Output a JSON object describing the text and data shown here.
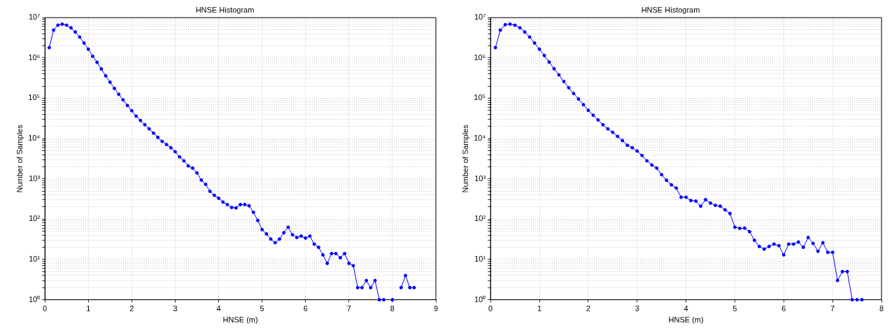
{
  "chart_data": [
    {
      "type": "line",
      "title": "HNSE Histogram",
      "xlabel": "HNSE (m)",
      "ylabel": "Number of Samples",
      "log": "y",
      "grid": true,
      "marker": "circle",
      "line_style": "solid",
      "xlim": [
        0,
        9
      ],
      "xticks": [
        0,
        1,
        2,
        3,
        4,
        5,
        6,
        7,
        8,
        9
      ],
      "ylim": [
        1,
        10000000
      ],
      "yticks": [
        {
          "value": 1,
          "label": "10⁰"
        },
        {
          "value": 2,
          "label": null
        },
        {
          "value": 3,
          "label": null
        },
        {
          "value": 4,
          "label": null
        },
        {
          "value": 5,
          "label": null
        },
        {
          "value": 6,
          "label": null
        },
        {
          "value": 7,
          "label": null
        },
        {
          "value": 8,
          "label": null
        },
        {
          "value": 9,
          "label": null
        },
        {
          "value": 10,
          "label": "10¹"
        },
        {
          "value": 20,
          "label": null
        },
        {
          "value": 30,
          "label": null
        },
        {
          "value": 40,
          "label": null
        },
        {
          "value": 50,
          "label": null
        },
        {
          "value": 60,
          "label": null
        },
        {
          "value": 70,
          "label": null
        },
        {
          "value": 80,
          "label": null
        },
        {
          "value": 90,
          "label": null
        },
        {
          "value": 100,
          "label": "10²"
        },
        {
          "value": 200,
          "label": null
        },
        {
          "value": 300,
          "label": null
        },
        {
          "value": 400,
          "label": null
        },
        {
          "value": 500,
          "label": null
        },
        {
          "value": 600,
          "label": null
        },
        {
          "value": 700,
          "label": null
        },
        {
          "value": 800,
          "label": null
        },
        {
          "value": 900,
          "label": null
        },
        {
          "value": 1000,
          "label": "10³"
        },
        {
          "value": 2000,
          "label": null
        },
        {
          "value": 3000,
          "label": null
        },
        {
          "value": 4000,
          "label": null
        },
        {
          "value": 5000,
          "label": null
        },
        {
          "value": 6000,
          "label": null
        },
        {
          "value": 7000,
          "label": null
        },
        {
          "value": 8000,
          "label": null
        },
        {
          "value": 9000,
          "label": null
        },
        {
          "value": 10000,
          "label": "10⁴"
        },
        {
          "value": 20000,
          "label": null
        },
        {
          "value": 30000,
          "label": null
        },
        {
          "value": 40000,
          "label": null
        },
        {
          "value": 50000,
          "label": null
        },
        {
          "value": 60000,
          "label": null
        },
        {
          "value": 70000,
          "label": null
        },
        {
          "value": 80000,
          "label": null
        },
        {
          "value": 90000,
          "label": null
        },
        {
          "value": 100000,
          "label": "10⁵"
        },
        {
          "value": 200000,
          "label": null
        },
        {
          "value": 300000,
          "label": null
        },
        {
          "value": 400000,
          "label": null
        },
        {
          "value": 500000,
          "label": null
        },
        {
          "value": 600000,
          "label": null
        },
        {
          "value": 700000,
          "label": null
        },
        {
          "value": 800000,
          "label": null
        },
        {
          "value": 900000,
          "label": null
        },
        {
          "value": 1000000,
          "label": "10⁶"
        },
        {
          "value": 2000000,
          "label": null
        },
        {
          "value": 3000000,
          "label": null
        },
        {
          "value": 4000000,
          "label": null
        },
        {
          "value": 5000000,
          "label": null
        },
        {
          "value": 6000000,
          "label": null
        },
        {
          "value": 7000000,
          "label": null
        },
        {
          "value": 8000000,
          "label": null
        },
        {
          "value": 9000000,
          "label": null
        },
        {
          "value": 10000000,
          "label": "10⁷"
        }
      ],
      "series": [
        {
          "color": "#0000ff",
          "x": [
            0.1,
            0.2,
            0.3,
            0.4,
            0.5,
            0.6,
            0.7,
            0.8,
            0.9,
            1.0,
            1.1,
            1.2,
            1.3,
            1.4,
            1.5,
            1.6,
            1.7,
            1.8,
            1.9,
            2.0,
            2.1,
            2.2,
            2.3,
            2.4,
            2.5,
            2.6,
            2.7,
            2.8,
            2.9,
            3.0,
            3.1,
            3.2,
            3.3,
            3.4,
            3.5,
            3.6,
            3.7,
            3.8,
            3.9,
            4.0,
            4.1,
            4.2,
            4.3,
            4.4,
            4.5,
            4.6,
            4.7,
            4.8,
            4.9,
            5.0,
            5.1,
            5.2,
            5.3,
            5.4,
            5.5,
            5.6,
            5.7,
            5.8,
            5.9,
            6.0,
            6.1,
            6.2,
            6.3,
            6.4,
            6.5,
            6.6,
            6.7,
            6.8,
            6.9,
            7.0,
            7.1,
            7.2,
            7.3,
            7.4,
            7.5,
            7.6,
            7.7,
            7.8,
            7.9,
            8.0,
            8.1,
            8.2,
            8.3,
            8.4,
            8.5
          ],
          "values": [
            1800000,
            4900000,
            6500000,
            6900000,
            6500000,
            5600000,
            4400000,
            3300000,
            2350000,
            1650000,
            1100000,
            780000,
            530000,
            360000,
            250000,
            175000,
            125000,
            91000,
            66000,
            49000,
            36000,
            28000,
            22000,
            17400,
            13600,
            10700,
            8500,
            7100,
            5900,
            4700,
            3500,
            2800,
            2100,
            1850,
            1400,
            930,
            730,
            490,
            390,
            330,
            265,
            230,
            195,
            190,
            230,
            230,
            215,
            148,
            93,
            55,
            43,
            32,
            26,
            32,
            46,
            63,
            41,
            35,
            38,
            34,
            38,
            24,
            20,
            13,
            8,
            14,
            14,
            11,
            14,
            8,
            7,
            2,
            2,
            3,
            2,
            3,
            1,
            1,
            null,
            1,
            null,
            2,
            4,
            2,
            2
          ]
        }
      ]
    },
    {
      "type": "line",
      "title": "HNSE Histogram",
      "xlabel": "HNSE (m)",
      "ylabel": "Number of Samples",
      "log": "y",
      "grid": true,
      "marker": "circle",
      "line_style": "solid",
      "xlim": [
        0,
        8
      ],
      "xticks": [
        0,
        1,
        2,
        3,
        4,
        5,
        6,
        7,
        8
      ],
      "ylim": [
        1,
        10000000
      ],
      "yticks": [
        {
          "value": 1,
          "label": "10⁰"
        },
        {
          "value": 2,
          "label": null
        },
        {
          "value": 3,
          "label": null
        },
        {
          "value": 4,
          "label": null
        },
        {
          "value": 5,
          "label": null
        },
        {
          "value": 6,
          "label": null
        },
        {
          "value": 7,
          "label": null
        },
        {
          "value": 8,
          "label": null
        },
        {
          "value": 9,
          "label": null
        },
        {
          "value": 10,
          "label": "10¹"
        },
        {
          "value": 20,
          "label": null
        },
        {
          "value": 30,
          "label": null
        },
        {
          "value": 40,
          "label": null
        },
        {
          "value": 50,
          "label": null
        },
        {
          "value": 60,
          "label": null
        },
        {
          "value": 70,
          "label": null
        },
        {
          "value": 80,
          "label": null
        },
        {
          "value": 90,
          "label": null
        },
        {
          "value": 100,
          "label": "10²"
        },
        {
          "value": 200,
          "label": null
        },
        {
          "value": 300,
          "label": null
        },
        {
          "value": 400,
          "label": null
        },
        {
          "value": 500,
          "label": null
        },
        {
          "value": 600,
          "label": null
        },
        {
          "value": 700,
          "label": null
        },
        {
          "value": 800,
          "label": null
        },
        {
          "value": 900,
          "label": null
        },
        {
          "value": 1000,
          "label": "10³"
        },
        {
          "value": 2000,
          "label": null
        },
        {
          "value": 3000,
          "label": null
        },
        {
          "value": 4000,
          "label": null
        },
        {
          "value": 5000,
          "label": null
        },
        {
          "value": 6000,
          "label": null
        },
        {
          "value": 7000,
          "label": null
        },
        {
          "value": 8000,
          "label": null
        },
        {
          "value": 9000,
          "label": null
        },
        {
          "value": 10000,
          "label": "10⁴"
        },
        {
          "value": 20000,
          "label": null
        },
        {
          "value": 30000,
          "label": null
        },
        {
          "value": 40000,
          "label": null
        },
        {
          "value": 50000,
          "label": null
        },
        {
          "value": 60000,
          "label": null
        },
        {
          "value": 70000,
          "label": null
        },
        {
          "value": 80000,
          "label": null
        },
        {
          "value": 90000,
          "label": null
        },
        {
          "value": 100000,
          "label": "10⁵"
        },
        {
          "value": 200000,
          "label": null
        },
        {
          "value": 300000,
          "label": null
        },
        {
          "value": 400000,
          "label": null
        },
        {
          "value": 500000,
          "label": null
        },
        {
          "value": 600000,
          "label": null
        },
        {
          "value": 700000,
          "label": null
        },
        {
          "value": 800000,
          "label": null
        },
        {
          "value": 900000,
          "label": null
        },
        {
          "value": 1000000,
          "label": "10⁶"
        },
        {
          "value": 2000000,
          "label": null
        },
        {
          "value": 3000000,
          "label": null
        },
        {
          "value": 4000000,
          "label": null
        },
        {
          "value": 5000000,
          "label": null
        },
        {
          "value": 6000000,
          "label": null
        },
        {
          "value": 7000000,
          "label": null
        },
        {
          "value": 8000000,
          "label": null
        },
        {
          "value": 9000000,
          "label": null
        },
        {
          "value": 10000000,
          "label": "10⁷"
        }
      ],
      "series": [
        {
          "color": "#0000ff",
          "x": [
            0.1,
            0.2,
            0.3,
            0.4,
            0.5,
            0.6,
            0.7,
            0.8,
            0.9,
            1.0,
            1.1,
            1.2,
            1.3,
            1.4,
            1.5,
            1.6,
            1.7,
            1.8,
            1.9,
            2.0,
            2.1,
            2.2,
            2.3,
            2.4,
            2.5,
            2.6,
            2.7,
            2.8,
            2.9,
            3.0,
            3.1,
            3.2,
            3.3,
            3.4,
            3.5,
            3.6,
            3.7,
            3.8,
            3.9,
            4.0,
            4.1,
            4.2,
            4.3,
            4.4,
            4.5,
            4.6,
            4.7,
            4.8,
            4.9,
            5.0,
            5.1,
            5.2,
            5.3,
            5.4,
            5.5,
            5.6,
            5.7,
            5.8,
            5.9,
            6.0,
            6.1,
            6.2,
            6.3,
            6.4,
            6.5,
            6.6,
            6.7,
            6.8,
            6.9,
            7.0,
            7.1,
            7.2,
            7.3,
            7.4,
            7.5,
            7.6
          ],
          "values": [
            1800000,
            4900000,
            6700000,
            6900000,
            6500000,
            5600000,
            4400000,
            3300000,
            2350000,
            1650000,
            1150000,
            790000,
            540000,
            380000,
            260000,
            183000,
            131000,
            96000,
            69000,
            50000,
            38000,
            29000,
            22000,
            17400,
            14200,
            11300,
            8900,
            6800,
            5900,
            4900,
            3800,
            2800,
            2200,
            1850,
            1270,
            920,
            710,
            590,
            350,
            350,
            290,
            280,
            210,
            305,
            250,
            220,
            210,
            170,
            138,
            63,
            59,
            60,
            49,
            30,
            21,
            18,
            21,
            24,
            22,
            13,
            24,
            24,
            27,
            20,
            35,
            25,
            16,
            26,
            15,
            15,
            3,
            5,
            5,
            1,
            1,
            1
          ]
        }
      ]
    }
  ]
}
